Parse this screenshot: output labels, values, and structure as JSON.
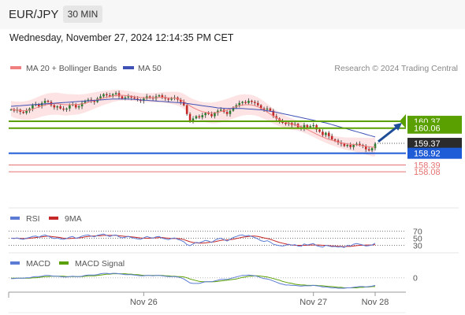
{
  "header": {
    "symbol": "EUR/JPY",
    "timeframe": "30 MIN"
  },
  "timestamp": "Wednesday, November 27, 2024 12:14:35 PM CET",
  "colors": {
    "up": "#2e7d32",
    "down": "#c62828",
    "wick": "#555555",
    "band_fill": "#fde3e3",
    "ma20": "#f08080",
    "ma50": "#3f51b5",
    "resistance": "#5aa000",
    "support": "#1e5bd6",
    "target": "#e57373",
    "arrow": "#1f4e99",
    "rsi": "#5b7bd5",
    "sma9": "#c62828",
    "macd": "#5b7bd5",
    "macd_signal": "#5aa000"
  },
  "chart_data": [
    {
      "type": "candlestick",
      "title": "EUR/JPY 30 MIN",
      "legend": [
        {
          "name": "MA 20 + Bollinger Bands",
          "color": "#f08080"
        },
        {
          "name": "MA 50",
          "color": "#3f51b5"
        }
      ],
      "credit": "Research © 2024 Trading Central",
      "x_ticks": [
        "Nov 26",
        "Nov 27",
        "Nov 28"
      ],
      "ylim": [
        157.8,
        162.3
      ],
      "ohlc_close": [
        160.9,
        160.85,
        160.9,
        160.8,
        160.75,
        160.85,
        160.95,
        161.1,
        161.15,
        161.05,
        161.2,
        161.3,
        161.25,
        161.1,
        161.0,
        161.05,
        160.95,
        160.9,
        160.95,
        161.1,
        161.15,
        161.0,
        161.05,
        161.2,
        161.3,
        161.35,
        161.3,
        161.25,
        161.4,
        161.5,
        161.6,
        161.55,
        161.5,
        161.6,
        161.65,
        161.5,
        161.4,
        161.45,
        161.5,
        161.45,
        161.4,
        161.35,
        161.3,
        161.4,
        161.5,
        161.45,
        161.4,
        161.5,
        161.55,
        161.45,
        161.4,
        161.35,
        161.4,
        161.45,
        161.35,
        161.25,
        161.1,
        160.7,
        160.4,
        160.5,
        160.6,
        160.55,
        160.65,
        160.75,
        160.7,
        160.6,
        160.75,
        160.85,
        160.9,
        160.8,
        160.7,
        160.85,
        161.0,
        161.1,
        161.2,
        161.25,
        161.2,
        161.3,
        161.25,
        161.2,
        161.1,
        160.95,
        160.9,
        160.95,
        160.85,
        160.6,
        160.5,
        160.4,
        160.3,
        160.25,
        160.3,
        160.2,
        160.25,
        160.1,
        160.05,
        160.2,
        160.1,
        160.15,
        160.2,
        160.0,
        159.9,
        159.75,
        159.85,
        159.7,
        159.55,
        159.5,
        159.4,
        159.35,
        159.25,
        159.3,
        159.2,
        159.3,
        159.35,
        159.3,
        159.25,
        159.1,
        159.05,
        159.15,
        159.35
      ],
      "ma20": [
        160.95,
        160.9,
        160.88,
        160.86,
        160.85,
        160.86,
        160.88,
        160.92,
        160.97,
        161.02,
        161.07,
        161.11,
        161.14,
        161.16,
        161.17,
        161.17,
        161.15,
        161.13,
        161.12,
        161.12,
        161.13,
        161.13,
        161.14,
        161.16,
        161.19,
        161.23,
        161.27,
        161.31,
        161.35,
        161.39,
        161.43,
        161.46,
        161.49,
        161.52,
        161.54,
        161.55,
        161.55,
        161.54,
        161.53,
        161.51,
        161.49,
        161.47,
        161.45,
        161.44,
        161.44,
        161.44,
        161.44,
        161.44,
        161.45,
        161.45,
        161.45,
        161.44,
        161.43,
        161.42,
        161.4,
        161.35,
        161.27,
        161.17,
        161.07,
        160.99,
        160.92,
        160.86,
        160.81,
        160.78,
        160.76,
        160.75,
        160.76,
        160.78,
        160.81,
        160.85,
        160.89,
        160.94,
        160.99,
        161.04,
        161.08,
        161.11,
        161.12,
        161.12,
        161.11,
        161.08,
        161.03,
        160.96,
        160.88,
        160.79,
        160.7,
        160.61,
        160.53,
        160.46,
        160.39,
        160.33,
        160.28,
        160.24,
        160.21,
        160.17,
        160.12,
        160.06,
        160.0,
        159.93,
        159.86,
        159.79,
        159.72,
        159.66,
        159.6,
        159.55,
        159.51,
        159.47,
        159.43,
        159.4,
        159.37,
        159.35,
        159.33,
        159.32,
        159.3,
        159.28,
        159.26,
        159.24,
        159.22,
        159.2,
        159.2
      ],
      "ma50": [
        161.05,
        161.06,
        161.07,
        161.08,
        161.09,
        161.1,
        161.11,
        161.12,
        161.13,
        161.14,
        161.15,
        161.16,
        161.17,
        161.18,
        161.19,
        161.2,
        161.21,
        161.22,
        161.23,
        161.24,
        161.25,
        161.26,
        161.27,
        161.28,
        161.29,
        161.3,
        161.31,
        161.32,
        161.33,
        161.34,
        161.35,
        161.36,
        161.37,
        161.38,
        161.38,
        161.38,
        161.38,
        161.38,
        161.38,
        161.37,
        161.36,
        161.35,
        161.34,
        161.33,
        161.32,
        161.31,
        161.3,
        161.29,
        161.28,
        161.27,
        161.26,
        161.25,
        161.24,
        161.23,
        161.22,
        161.21,
        161.2,
        161.18,
        161.16,
        161.14,
        161.12,
        161.1,
        161.08,
        161.06,
        161.04,
        161.02,
        161.0,
        160.98,
        160.97,
        160.96,
        160.95,
        160.95,
        160.95,
        160.95,
        160.95,
        160.95,
        160.94,
        160.93,
        160.92,
        160.91,
        160.9,
        160.89,
        160.87,
        160.85,
        160.83,
        160.81,
        160.78,
        160.75,
        160.72,
        160.69,
        160.66,
        160.63,
        160.6,
        160.57,
        160.54,
        160.51,
        160.48,
        160.45,
        160.42,
        160.39,
        160.36,
        160.33,
        160.3,
        160.26,
        160.22,
        160.18,
        160.14,
        160.1,
        160.06,
        160.02,
        159.98,
        159.94,
        159.9,
        159.86,
        159.82,
        159.78,
        159.74,
        159.7,
        159.66
      ],
      "levels": [
        {
          "value": 160.37,
          "label": "160.37",
          "kind": "resistance"
        },
        {
          "value": 160.06,
          "label": "160.06",
          "kind": "resistance"
        },
        {
          "value": 159.37,
          "label": "159.37",
          "kind": "last"
        },
        {
          "value": 158.92,
          "label": "158.92",
          "kind": "support"
        },
        {
          "value": 158.39,
          "label": "158.39",
          "kind": "target"
        },
        {
          "value": 158.08,
          "label": "158.08",
          "kind": "target"
        }
      ]
    },
    {
      "type": "line",
      "legend": [
        {
          "name": "RSI",
          "color": "#5b7bd5"
        },
        {
          "name": "9MA",
          "color": "#c62828"
        }
      ],
      "levels": [
        70,
        50,
        30
      ],
      "level_labels": [
        "70",
        "50",
        "30"
      ],
      "ylim": [
        20,
        80
      ],
      "rsi": [
        50,
        49,
        51,
        48,
        47,
        50,
        52,
        55,
        56,
        53,
        57,
        59,
        56,
        52,
        49,
        51,
        48,
        47,
        49,
        53,
        55,
        50,
        52,
        56,
        58,
        59,
        56,
        54,
        58,
        60,
        62,
        58,
        55,
        58,
        59,
        54,
        51,
        53,
        55,
        52,
        50,
        48,
        47,
        51,
        55,
        52,
        50,
        54,
        55,
        50,
        48,
        46,
        49,
        51,
        47,
        44,
        40,
        32,
        29,
        34,
        38,
        37,
        40,
        44,
        42,
        38,
        44,
        48,
        50,
        46,
        42,
        47,
        52,
        55,
        58,
        59,
        56,
        58,
        55,
        52,
        48,
        43,
        41,
        43,
        39,
        33,
        31,
        29,
        28,
        30,
        33,
        30,
        32,
        28,
        27,
        34,
        31,
        33,
        35,
        29,
        27,
        25,
        30,
        28,
        26,
        27,
        25,
        26,
        24,
        30,
        28,
        33,
        35,
        33,
        31,
        28,
        29,
        31,
        36
      ],
      "ma9": [
        50,
        50,
        50,
        49,
        49,
        49,
        50,
        51,
        52,
        53,
        54,
        55,
        56,
        55,
        54,
        53,
        52,
        50,
        49,
        49,
        50,
        50,
        51,
        52,
        54,
        55,
        56,
        56,
        57,
        57,
        58,
        58,
        58,
        58,
        58,
        57,
        56,
        55,
        55,
        54,
        53,
        52,
        51,
        50,
        50,
        50,
        51,
        51,
        52,
        52,
        51,
        50,
        49,
        49,
        49,
        48,
        46,
        43,
        40,
        38,
        37,
        36,
        36,
        37,
        38,
        39,
        40,
        42,
        44,
        45,
        45,
        46,
        47,
        49,
        51,
        53,
        54,
        55,
        56,
        56,
        55,
        53,
        51,
        49,
        47,
        44,
        41,
        38,
        36,
        34,
        32,
        31,
        30,
        30,
        30,
        30,
        30,
        31,
        31,
        31,
        31,
        30,
        30,
        29,
        28,
        28,
        27,
        27,
        26,
        27,
        27,
        28,
        29,
        30,
        30,
        31,
        31,
        31,
        32
      ]
    },
    {
      "type": "line",
      "legend": [
        {
          "name": "MACD",
          "color": "#5b7bd5"
        },
        {
          "name": "MACD Signal",
          "color": "#5aa000"
        }
      ],
      "zero_label": "0",
      "ylim": [
        -0.3,
        0.25
      ],
      "macd": [
        -0.02,
        -0.02,
        -0.01,
        -0.01,
        -0.01,
        0.0,
        0.0,
        0.02,
        0.03,
        0.03,
        0.04,
        0.06,
        0.06,
        0.05,
        0.04,
        0.04,
        0.03,
        0.02,
        0.02,
        0.03,
        0.04,
        0.03,
        0.03,
        0.04,
        0.06,
        0.07,
        0.07,
        0.07,
        0.08,
        0.1,
        0.11,
        0.11,
        0.1,
        0.11,
        0.11,
        0.1,
        0.09,
        0.08,
        0.08,
        0.08,
        0.07,
        0.06,
        0.05,
        0.05,
        0.06,
        0.06,
        0.05,
        0.06,
        0.06,
        0.05,
        0.04,
        0.03,
        0.03,
        0.03,
        0.02,
        0.0,
        -0.03,
        -0.08,
        -0.13,
        -0.14,
        -0.14,
        -0.14,
        -0.12,
        -0.1,
        -0.1,
        -0.1,
        -0.08,
        -0.06,
        -0.04,
        -0.04,
        -0.04,
        -0.02,
        0.0,
        0.02,
        0.04,
        0.06,
        0.06,
        0.07,
        0.06,
        0.05,
        0.03,
        0.0,
        -0.02,
        -0.03,
        -0.05,
        -0.08,
        -0.11,
        -0.14,
        -0.16,
        -0.18,
        -0.18,
        -0.19,
        -0.19,
        -0.2,
        -0.21,
        -0.2,
        -0.2,
        -0.2,
        -0.19,
        -0.2,
        -0.21,
        -0.23,
        -0.23,
        -0.24,
        -0.25,
        -0.25,
        -0.26,
        -0.26,
        -0.26,
        -0.25,
        -0.25,
        -0.24,
        -0.23,
        -0.22,
        -0.22,
        -0.23,
        -0.22,
        -0.21,
        -0.19
      ],
      "signal": [
        -0.01,
        -0.01,
        -0.01,
        -0.01,
        -0.01,
        -0.01,
        -0.01,
        0.0,
        0.0,
        0.01,
        0.02,
        0.03,
        0.03,
        0.04,
        0.04,
        0.04,
        0.04,
        0.04,
        0.03,
        0.03,
        0.03,
        0.03,
        0.03,
        0.03,
        0.04,
        0.05,
        0.05,
        0.05,
        0.06,
        0.07,
        0.08,
        0.09,
        0.09,
        0.1,
        0.1,
        0.1,
        0.1,
        0.1,
        0.09,
        0.09,
        0.08,
        0.08,
        0.07,
        0.06,
        0.06,
        0.06,
        0.06,
        0.06,
        0.06,
        0.06,
        0.05,
        0.05,
        0.04,
        0.04,
        0.03,
        0.03,
        0.02,
        0.0,
        -0.03,
        -0.05,
        -0.07,
        -0.09,
        -0.1,
        -0.1,
        -0.1,
        -0.1,
        -0.1,
        -0.09,
        -0.08,
        -0.07,
        -0.06,
        -0.05,
        -0.04,
        -0.03,
        -0.01,
        0.01,
        0.02,
        0.04,
        0.04,
        0.05,
        0.05,
        0.04,
        0.03,
        0.02,
        0.0,
        -0.02,
        -0.04,
        -0.06,
        -0.09,
        -0.11,
        -0.13,
        -0.14,
        -0.16,
        -0.17,
        -0.18,
        -0.18,
        -0.19,
        -0.19,
        -0.19,
        -0.19,
        -0.2,
        -0.2,
        -0.21,
        -0.22,
        -0.22,
        -0.23,
        -0.24,
        -0.24,
        -0.25,
        -0.25,
        -0.25,
        -0.25,
        -0.25,
        -0.24,
        -0.24,
        -0.23,
        -0.23,
        -0.22,
        -0.22
      ]
    }
  ]
}
